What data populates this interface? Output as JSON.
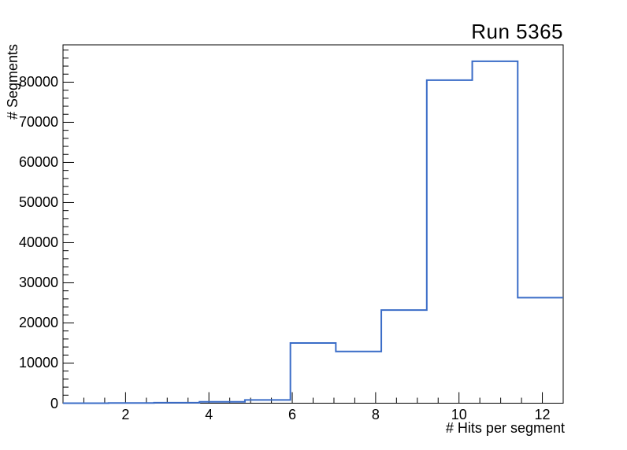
{
  "title": "Run 5365",
  "chart_data": {
    "type": "histogram-step",
    "title": "Run 5365",
    "xlabel": "# Hits per segment",
    "ylabel": "# Segments",
    "xlim": [
      0.5,
      12.5
    ],
    "ylim": [
      0,
      89300
    ],
    "n_bins": 11,
    "bin_edges": [
      0.5,
      1.591,
      2.682,
      3.773,
      4.864,
      5.955,
      7.045,
      8.136,
      9.227,
      10.318,
      11.409,
      12.5
    ],
    "counts": [
      10,
      40,
      120,
      350,
      800,
      15000,
      12900,
      23200,
      80500,
      85200,
      26300
    ],
    "x_major_ticks": [
      2,
      4,
      6,
      8,
      10,
      12
    ],
    "x_tick_labels": [
      "2",
      "4",
      "6",
      "8",
      "10",
      "12"
    ],
    "x_minor_step": 0.5,
    "y_major_ticks": [
      0,
      10000,
      20000,
      30000,
      40000,
      50000,
      60000,
      70000,
      80000
    ],
    "y_tick_labels": [
      "0",
      "10000",
      "20000",
      "30000",
      "40000",
      "50000",
      "60000",
      "70000",
      "80000"
    ],
    "y_minor_step": 2000,
    "grid": "off",
    "legend": "none",
    "line_color": "#3a6cc7",
    "axis_color": "#000000",
    "background_color": "#ffffff"
  }
}
